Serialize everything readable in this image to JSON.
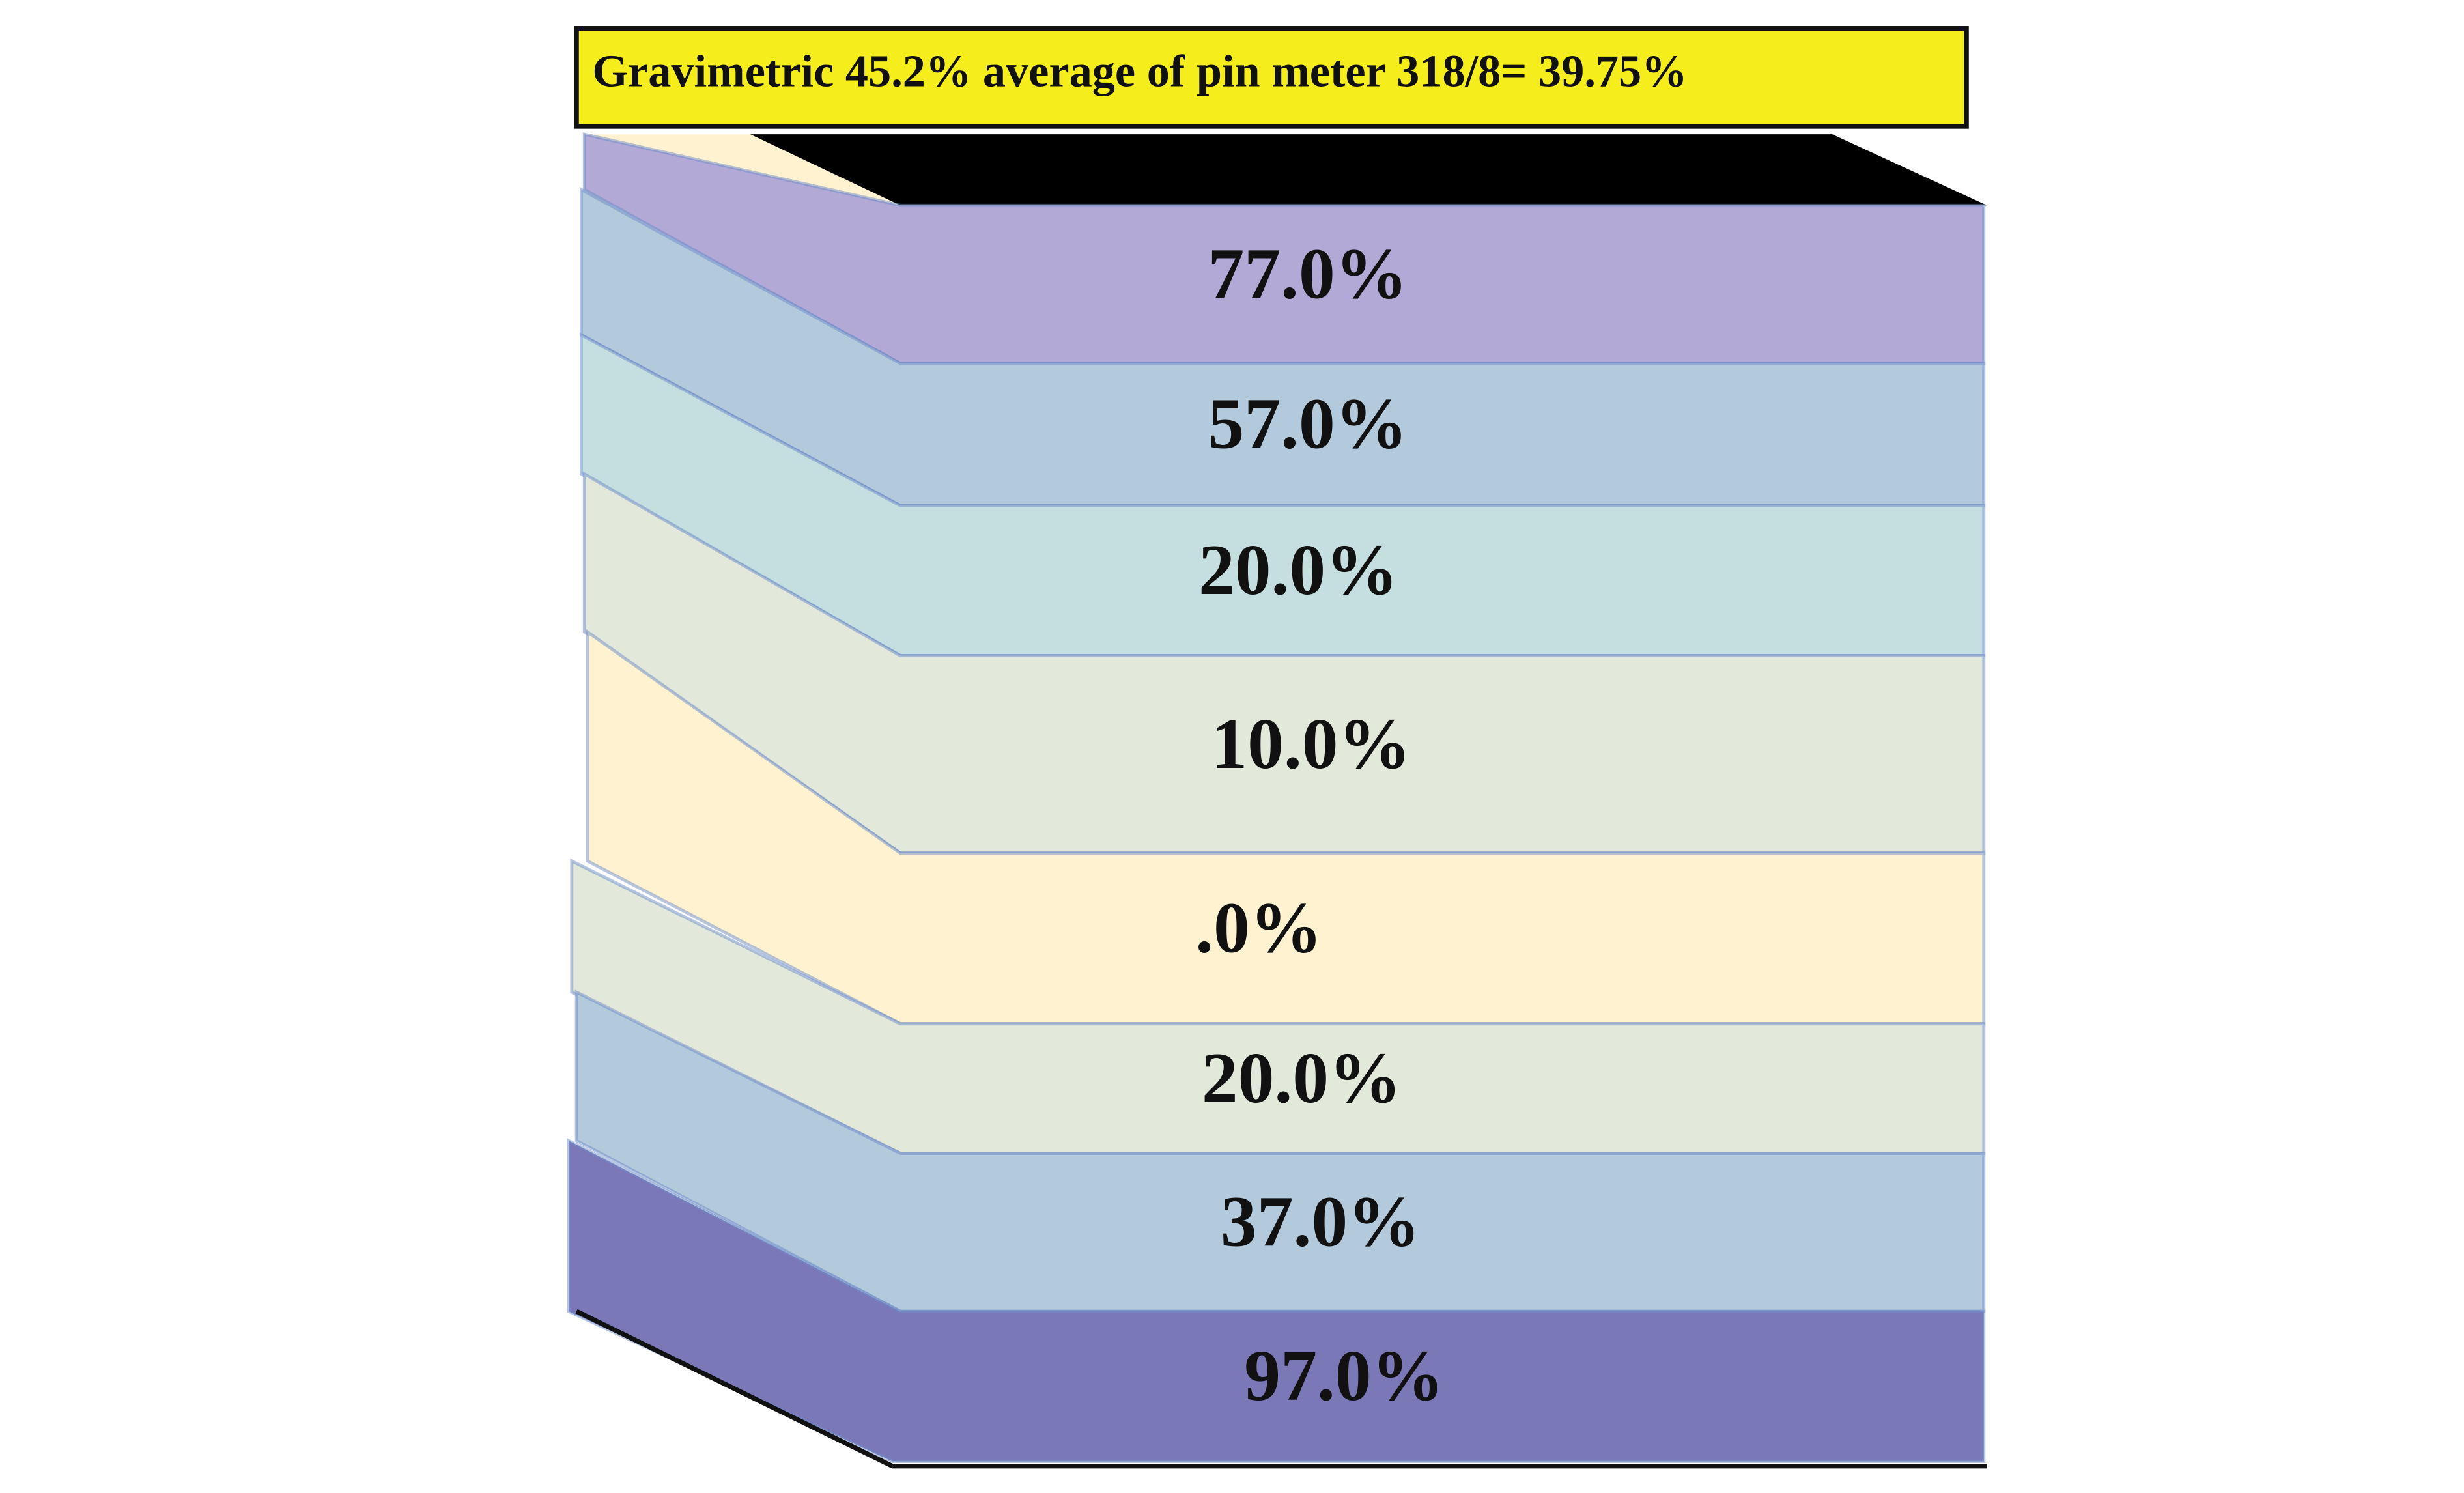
{
  "header": {
    "title": "Gravimetric 45.2%  average of pin meter 318/8= 39.75%"
  },
  "layers": [
    {
      "label": "77.0%"
    },
    {
      "label": "57.0%"
    },
    {
      "label": "20.0%"
    },
    {
      "label": "10.0%"
    },
    {
      "label": ".0%"
    },
    {
      "label": "20.0%"
    },
    {
      "label": "37.0%"
    },
    {
      "label": "97.0%"
    }
  ]
}
